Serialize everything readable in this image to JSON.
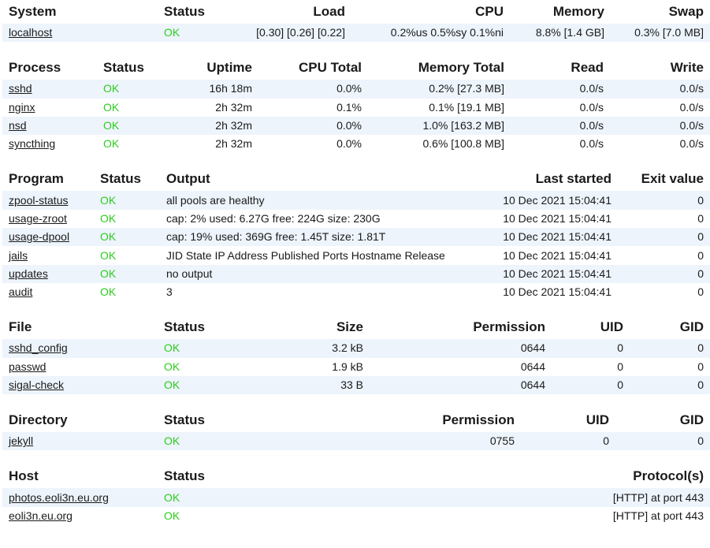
{
  "colors": {
    "ok": "#2ecc1e",
    "stripe": "#edf4fc",
    "text": "#1a1a1a"
  },
  "system": {
    "headers": [
      "System",
      "Status",
      "Load",
      "CPU",
      "Memory",
      "Swap"
    ],
    "rows": [
      {
        "name": "localhost",
        "status": "OK",
        "load": "[0.30] [0.26] [0.22]",
        "cpu": "0.2%us 0.5%sy 0.1%ni",
        "memory": "8.8% [1.4 GB]",
        "swap": "0.3% [7.0 MB]"
      }
    ]
  },
  "process": {
    "headers": [
      "Process",
      "Status",
      "Uptime",
      "CPU Total",
      "Memory Total",
      "Read",
      "Write"
    ],
    "rows": [
      {
        "name": "sshd",
        "status": "OK",
        "uptime": "16h 18m",
        "cpu": "0.0%",
        "memory": "0.2% [27.3 MB]",
        "read": "0.0/s",
        "write": "0.0/s"
      },
      {
        "name": "nginx",
        "status": "OK",
        "uptime": "2h 32m",
        "cpu": "0.1%",
        "memory": "0.1% [19.1 MB]",
        "read": "0.0/s",
        "write": "0.0/s"
      },
      {
        "name": "nsd",
        "status": "OK",
        "uptime": "2h 32m",
        "cpu": "0.0%",
        "memory": "1.0% [163.2 MB]",
        "read": "0.0/s",
        "write": "0.0/s"
      },
      {
        "name": "syncthing",
        "status": "OK",
        "uptime": "2h 32m",
        "cpu": "0.0%",
        "memory": "0.6% [100.8 MB]",
        "read": "0.0/s",
        "write": "0.0/s"
      }
    ]
  },
  "program": {
    "headers": [
      "Program",
      "Status",
      "Output",
      "Last started",
      "Exit value"
    ],
    "rows": [
      {
        "name": "zpool-status",
        "status": "OK",
        "output": "all pools are healthy",
        "started": "10 Dec 2021 15:04:41",
        "exit": "0"
      },
      {
        "name": "usage-zroot",
        "status": "OK",
        "output": "cap: 2% used: 6.27G free: 224G size: 230G",
        "started": "10 Dec 2021 15:04:41",
        "exit": "0"
      },
      {
        "name": "usage-dpool",
        "status": "OK",
        "output": "cap: 19% used: 369G free: 1.45T size: 1.81T",
        "started": "10 Dec 2021 15:04:41",
        "exit": "0"
      },
      {
        "name": "jails",
        "status": "OK",
        "output": "JID State IP Address Published Ports Hostname Release",
        "started": "10 Dec 2021 15:04:41",
        "exit": "0"
      },
      {
        "name": "updates",
        "status": "OK",
        "output": "no output",
        "started": "10 Dec 2021 15:04:41",
        "exit": "0"
      },
      {
        "name": "audit",
        "status": "OK",
        "output": "3",
        "started": "10 Dec 2021 15:04:41",
        "exit": "0"
      }
    ]
  },
  "file": {
    "headers": [
      "File",
      "Status",
      "Size",
      "Permission",
      "UID",
      "GID"
    ],
    "rows": [
      {
        "name": "sshd_config",
        "status": "OK",
        "size": "3.2 kB",
        "perm": "0644",
        "uid": "0",
        "gid": "0"
      },
      {
        "name": "passwd",
        "status": "OK",
        "size": "1.9 kB",
        "perm": "0644",
        "uid": "0",
        "gid": "0"
      },
      {
        "name": "sigal-check",
        "status": "OK",
        "size": "33 B",
        "perm": "0644",
        "uid": "0",
        "gid": "0"
      }
    ]
  },
  "directory": {
    "headers": [
      "Directory",
      "Status",
      "Permission",
      "UID",
      "GID"
    ],
    "rows": [
      {
        "name": "jekyll",
        "status": "OK",
        "perm": "0755",
        "uid": "0",
        "gid": "0"
      }
    ]
  },
  "host": {
    "headers": [
      "Host",
      "Status",
      "Protocol(s)"
    ],
    "rows": [
      {
        "name": "photos.eoli3n.eu.org",
        "status": "OK",
        "protocols": "[HTTP] at port 443"
      },
      {
        "name": "eoli3n.eu.org",
        "status": "OK",
        "protocols": "[HTTP] at port 443"
      }
    ]
  }
}
